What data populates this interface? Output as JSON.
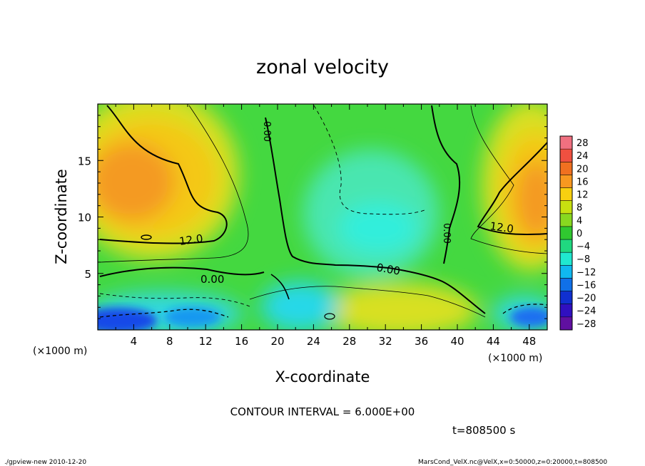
{
  "chart_data": {
    "type": "heatmap",
    "title": "zonal velocity",
    "xlabel": "X-coordinate",
    "ylabel": "Z-coordinate",
    "x_unit_label": "(×1000 m)",
    "x_unit_label_right": "(×1000 m)",
    "xlim": [
      0,
      50
    ],
    "ylim": [
      0,
      20
    ],
    "x_ticks": [
      4,
      8,
      12,
      16,
      20,
      24,
      28,
      32,
      36,
      40,
      44,
      48
    ],
    "y_ticks": [
      5,
      10,
      15
    ],
    "colorbar": {
      "levels": [
        28,
        24,
        20,
        16,
        12,
        8,
        4,
        0,
        -4,
        -8,
        -12,
        -16,
        -20,
        -24,
        -28
      ],
      "labels": [
        "28",
        "24",
        "20",
        "16",
        "12",
        "8",
        "4",
        "0",
        "−4",
        "−8",
        "−12",
        "−16",
        "−20",
        "−24",
        "−28"
      ],
      "colors": [
        "#f07080",
        "#f05040",
        "#f07020",
        "#f89820",
        "#f8d010",
        "#c8e010",
        "#88d820",
        "#30c830",
        "#20d880",
        "#20e8d0",
        "#10b8f0",
        "#1070e8",
        "#1030d0",
        "#3010c0",
        "#6010a0"
      ]
    },
    "contour_labels": [
      "12.0",
      "0.00",
      "0.00",
      "0.00",
      "0.00",
      "12.0"
    ],
    "contour_interval_text": "CONTOUR INTERVAL = 6.000E+00",
    "time_text": "t=808500 s"
  },
  "footer": {
    "left": "./gpview-new  2010-12-20",
    "right": "MarsCond_VelX.nc@VelX,x=0:50000,z=0:20000,t=808500"
  },
  "colors": {
    "background": "#ffffff",
    "field_green": "#40d840",
    "field_yellow": "#f0d020",
    "field_orange": "#f08820",
    "field_cyan": "#40e8c8",
    "field_blue": "#2050e0"
  }
}
